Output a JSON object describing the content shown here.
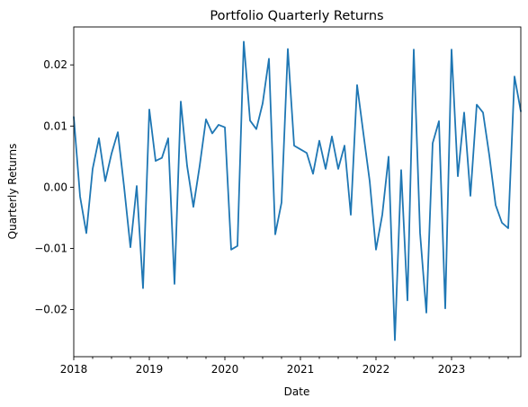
{
  "chart_data": {
    "type": "line",
    "title": "Portfolio Quarterly Returns",
    "xlabel": "Date",
    "ylabel": "Quarterly Returns",
    "xlim": [
      "2018-01",
      "2023-12"
    ],
    "ylim": [
      -0.0277,
      0.0262
    ],
    "grid": false,
    "legend": "none",
    "series_color": "#1f77b4",
    "x_ticks_major": [
      {
        "value": "2018-01",
        "label": "2018"
      },
      {
        "value": "2019-01",
        "label": "2019"
      },
      {
        "value": "2020-01",
        "label": "2020"
      },
      {
        "value": "2021-01",
        "label": "2021"
      },
      {
        "value": "2022-01",
        "label": "2022"
      },
      {
        "value": "2023-01",
        "label": "2023"
      }
    ],
    "y_ticks": [
      {
        "value": -0.02,
        "label": "−0.02"
      },
      {
        "value": -0.01,
        "label": "−0.01"
      },
      {
        "value": 0.0,
        "label": "0.00"
      },
      {
        "value": 0.01,
        "label": "0.01"
      },
      {
        "value": 0.02,
        "label": "0.02"
      }
    ],
    "x": [
      "2018-01",
      "2018-02",
      "2018-03",
      "2018-04",
      "2018-05",
      "2018-06",
      "2018-07",
      "2018-08",
      "2018-09",
      "2018-10",
      "2018-11",
      "2018-12",
      "2019-01",
      "2019-02",
      "2019-03",
      "2019-04",
      "2019-05",
      "2019-06",
      "2019-07",
      "2019-08",
      "2019-09",
      "2019-10",
      "2019-11",
      "2019-12",
      "2020-01",
      "2020-02",
      "2020-03",
      "2020-04",
      "2020-05",
      "2020-06",
      "2020-07",
      "2020-08",
      "2020-09",
      "2020-10",
      "2020-11",
      "2020-12",
      "2021-01",
      "2021-02",
      "2021-03",
      "2021-04",
      "2021-05",
      "2021-06",
      "2021-07",
      "2021-08",
      "2021-09",
      "2021-10",
      "2021-11",
      "2021-12",
      "2022-01",
      "2022-02",
      "2022-03",
      "2022-04",
      "2022-05",
      "2022-06",
      "2022-07",
      "2022-08",
      "2022-09",
      "2022-10",
      "2022-11",
      "2022-12",
      "2023-01",
      "2023-02",
      "2023-03",
      "2023-04",
      "2023-05",
      "2023-06",
      "2023-07",
      "2023-08",
      "2023-09",
      "2023-10",
      "2023-11",
      "2023-12"
    ],
    "values": [
      0.0115,
      -0.0015,
      -0.0075,
      0.003,
      0.008,
      0.001,
      0.0055,
      0.009,
      0.0,
      -0.0098,
      0.0002,
      -0.0165,
      0.0127,
      0.0043,
      0.0048,
      0.008,
      -0.0158,
      0.014,
      0.0035,
      -0.0032,
      0.0035,
      0.0111,
      0.0088,
      0.0102,
      0.0098,
      -0.0102,
      -0.0096,
      0.0238,
      0.0109,
      0.0095,
      0.0137,
      0.021,
      -0.0077,
      -0.0025,
      0.0226,
      0.0068,
      0.0062,
      0.0056,
      0.0022,
      0.0076,
      0.003,
      0.0083,
      0.003,
      0.0068,
      -0.0045,
      0.0167,
      0.0088,
      0.001,
      -0.0102,
      -0.0045,
      0.005,
      -0.025,
      0.0028,
      -0.0185,
      0.0225,
      -0.0075,
      -0.0205,
      0.0072,
      0.0108,
      -0.0198,
      0.0225,
      0.0018,
      0.0122,
      -0.0014,
      0.0135,
      0.0122,
      0.0052,
      -0.0029,
      -0.0058,
      -0.0067,
      0.0181,
      0.0124
    ]
  }
}
